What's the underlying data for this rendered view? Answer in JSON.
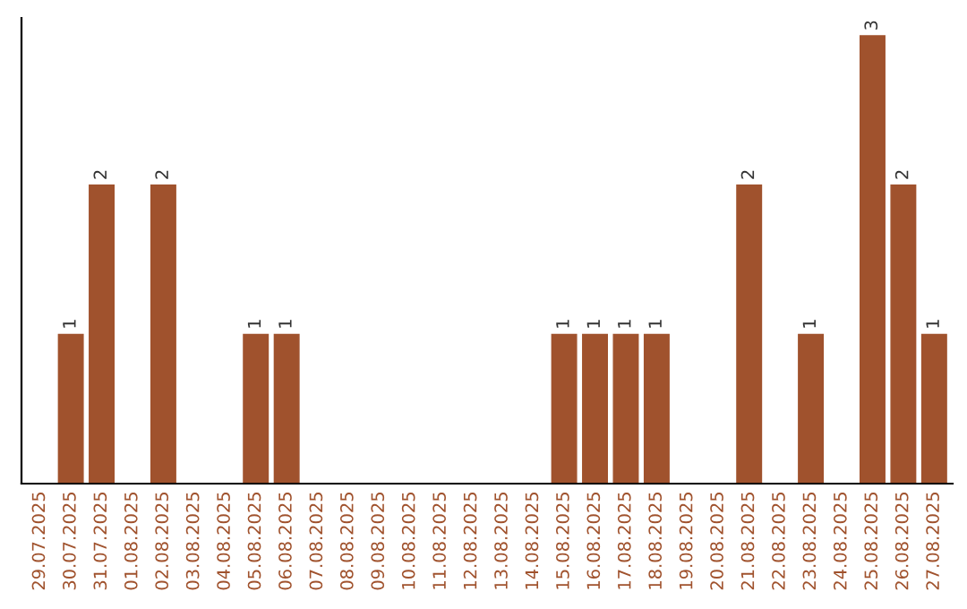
{
  "chart_data": {
    "type": "bar",
    "categories": [
      "29.07.2025",
      "30.07.2025",
      "31.07.2025",
      "01.08.2025",
      "02.08.2025",
      "03.08.2025",
      "04.08.2025",
      "05.08.2025",
      "06.08.2025",
      "07.08.2025",
      "08.08.2025",
      "09.08.2025",
      "10.08.2025",
      "11.08.2025",
      "12.08.2025",
      "13.08.2025",
      "14.08.2025",
      "15.08.2025",
      "16.08.2025",
      "17.08.2025",
      "18.08.2025",
      "19.08.2025",
      "20.08.2025",
      "21.08.2025",
      "22.08.2025",
      "23.08.2025",
      "24.08.2025",
      "25.08.2025",
      "26.08.2025",
      "27.08.2025"
    ],
    "values": [
      0,
      1,
      2,
      0,
      2,
      0,
      0,
      1,
      1,
      0,
      0,
      0,
      0,
      0,
      0,
      0,
      0,
      1,
      1,
      1,
      1,
      0,
      0,
      2,
      0,
      1,
      0,
      3,
      2,
      1
    ],
    "value_labels": [
      null,
      "1",
      "2",
      null,
      "2",
      null,
      null,
      "1",
      "1",
      null,
      null,
      null,
      null,
      null,
      null,
      null,
      null,
      "1",
      "1",
      "1",
      "1",
      null,
      null,
      "2",
      null,
      "1",
      null,
      "3",
      "2",
      "1"
    ],
    "color": "#a0522d",
    "grid": false,
    "legend": false
  }
}
